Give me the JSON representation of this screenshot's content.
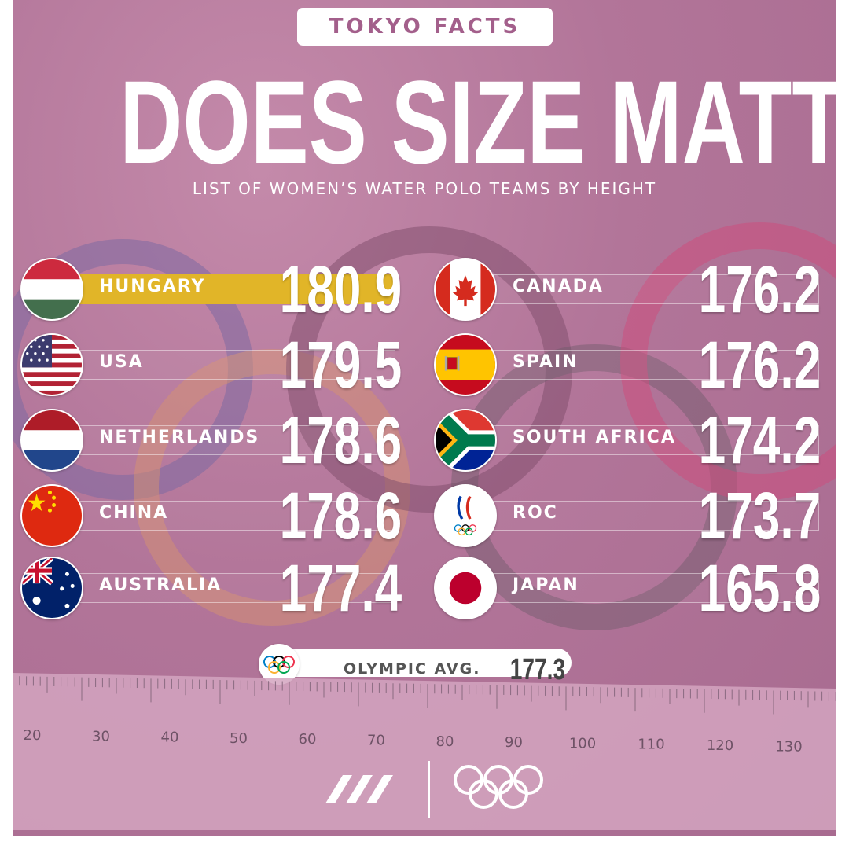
{
  "header": {
    "tag": "TOKYO FACTS",
    "title": "DOES SIZE MATTER?",
    "subtitle": "LIST OF WOMEN’S WATER POLO TEAMS BY HEIGHT"
  },
  "teams_left": [
    {
      "country": "HUNGARY",
      "height": "180.9",
      "flag": "hungary-flag-icon",
      "highlight": true
    },
    {
      "country": "USA",
      "height": "179.5",
      "flag": "usa-flag-icon"
    },
    {
      "country": "NETHERLANDS",
      "height": "178.6",
      "flag": "netherlands-flag-icon"
    },
    {
      "country": "CHINA",
      "height": "178.6",
      "flag": "china-flag-icon"
    },
    {
      "country": "AUSTRALIA",
      "height": "177.4",
      "flag": "australia-flag-icon"
    }
  ],
  "teams_right": [
    {
      "country": "CANADA",
      "height": "176.2",
      "flag": "canada-flag-icon"
    },
    {
      "country": "SPAIN",
      "height": "176.2",
      "flag": "spain-flag-icon"
    },
    {
      "country": "SOUTH AFRICA",
      "height": "174.2",
      "flag": "south-africa-flag-icon"
    },
    {
      "country": "ROC",
      "height": "173.7",
      "flag": "roc-emblem-icon"
    },
    {
      "country": "JAPAN",
      "height": "165.8",
      "flag": "japan-flag-icon"
    }
  ],
  "average": {
    "label": "OLYMPIC AVG.",
    "value": "177.3",
    "icon": "olympic-rings-icon"
  },
  "ruler": {
    "ticks": [
      "20",
      "30",
      "40",
      "50",
      "60",
      "70",
      "80",
      "90",
      "100",
      "110",
      "120",
      "130"
    ]
  },
  "colors": {
    "background": "#b27599",
    "highlight": "#e1b528",
    "tag_text": "#a35f8b"
  },
  "logos": [
    "brand-logo-icon",
    "olympic-rings-icon"
  ]
}
